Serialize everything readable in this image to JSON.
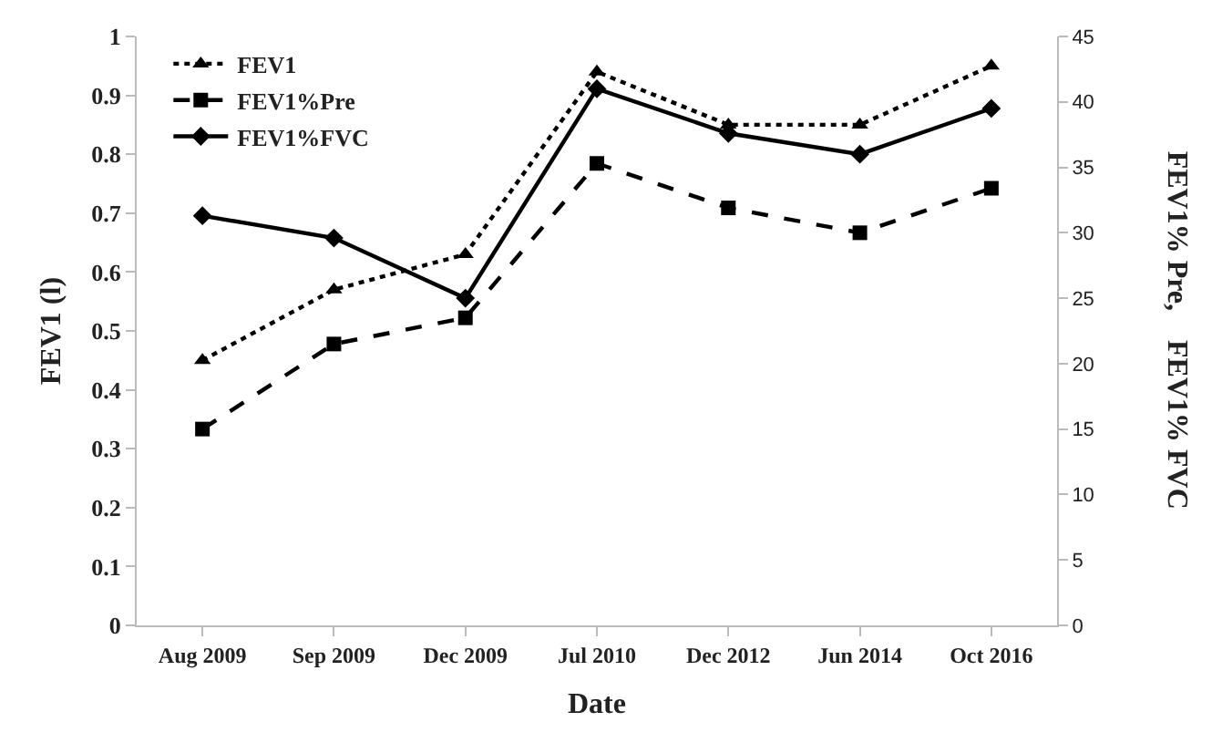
{
  "chart_data": {
    "type": "line",
    "xlabel": "Date",
    "ylabel": "FEV1 (l)",
    "y2label": "FEV1% Pre,    FEV1% FVC",
    "categories": [
      "Aug 2009",
      "Sep 2009",
      "Dec 2009",
      "Jul 2010",
      "Dec 2012",
      "Jun 2014",
      "Oct 2016"
    ],
    "series": [
      {
        "name": "FEV1",
        "color": "#000000",
        "marker": "triangle",
        "line_style": "dotted",
        "values": [
          0.45,
          0.57,
          0.63,
          0.94,
          0.85,
          0.85,
          0.95
        ]
      },
      {
        "name": "FEV1%Pre",
        "color": "#000000",
        "marker": "square",
        "line_style": "dashed",
        "axis": "y2",
        "values": [
          15,
          21.5,
          23.5,
          35.3,
          31.9,
          30,
          33.4
        ]
      },
      {
        "name": "FEV1%FVC",
        "color": "#000000",
        "marker": "diamond",
        "line_style": "solid",
        "axis": "y2",
        "values": [
          31.3,
          29.6,
          25,
          41,
          37.6,
          36,
          39.5
        ]
      }
    ],
    "ylim": [
      0,
      1
    ],
    "yticks": [
      0,
      0.1,
      0.2,
      0.3,
      0.4,
      0.5,
      0.6,
      0.7,
      0.8,
      0.9,
      1
    ],
    "y2lim": [
      0,
      45
    ],
    "y2ticks": [
      0,
      5,
      10,
      15,
      20,
      25,
      30,
      35,
      40,
      45
    ],
    "grid": false,
    "legend": "top left"
  }
}
